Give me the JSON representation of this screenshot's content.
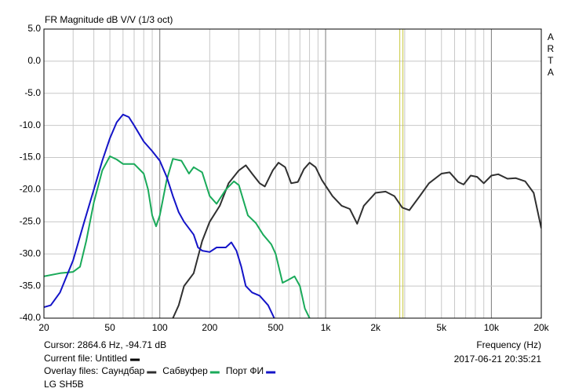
{
  "chart_data": {
    "type": "line",
    "title": "FR Magnitude dB V/V (1/3 oct)",
    "side_label": "ARTA",
    "x_label": "Frequency (Hz)",
    "x_scale": "log",
    "xlim": [
      20,
      20000
    ],
    "ylim": [
      -40,
      5
    ],
    "xticks": [
      20,
      50,
      100,
      200,
      500,
      {
        "value": 1000,
        "label": "1k"
      },
      {
        "value": 2000,
        "label": "2k"
      },
      {
        "value": 5000,
        "label": "5k"
      },
      {
        "value": 10000,
        "label": "10k"
      },
      {
        "value": 20000,
        "label": "20k"
      }
    ],
    "xgrid": [
      20,
      30,
      40,
      50,
      60,
      70,
      80,
      90,
      100,
      200,
      300,
      400,
      500,
      600,
      700,
      800,
      900,
      1000,
      2000,
      3000,
      4000,
      5000,
      6000,
      7000,
      8000,
      9000,
      10000,
      20000
    ],
    "xgrid_major": [
      100,
      1000,
      10000
    ],
    "yticks": [
      {
        "value": 5,
        "label": "5.0"
      },
      {
        "value": 0,
        "label": "0.0"
      },
      {
        "value": -5,
        "label": "-5.0"
      },
      {
        "value": -10,
        "label": "-10.0"
      },
      {
        "value": -15,
        "label": "-15.0"
      },
      {
        "value": -20,
        "label": "-20.0"
      },
      {
        "value": -25,
        "label": "-25.0"
      },
      {
        "value": -30,
        "label": "-30.0"
      },
      {
        "value": -35,
        "label": "-35.0"
      },
      {
        "value": -40,
        "label": "-40.0"
      }
    ],
    "grid": true,
    "cursor": {
      "label": "Cursor: 2864.6 Hz, -94.71 dB",
      "x": 2864.6,
      "color": "#c8c83c"
    },
    "current_file": "Current file: Untitled",
    "overlay_label": "Overlay files:",
    "timestamp": "2017-06-21  20:35:21",
    "device": "LG SH5B",
    "series": [
      {
        "name": "Саундбар",
        "color": "#303030",
        "x": [
          120,
          130,
          140,
          160,
          180,
          200,
          230,
          260,
          300,
          330,
          360,
          400,
          430,
          480,
          520,
          570,
          620,
          680,
          740,
          800,
          870,
          950,
          1100,
          1250,
          1400,
          1550,
          1700,
          2000,
          2300,
          2600,
          2900,
          3200,
          3700,
          4200,
          5000,
          5600,
          6300,
          6800,
          7500,
          8200,
          9000,
          10000,
          11000,
          12500,
          14000,
          16000,
          18000,
          20000
        ],
        "values": [
          -40,
          -38,
          -35,
          -33,
          -28,
          -25,
          -22.5,
          -19,
          -17,
          -16.2,
          -17.5,
          -19,
          -19.5,
          -17,
          -15.8,
          -16.5,
          -19,
          -18.8,
          -16.8,
          -15.8,
          -16.5,
          -18.5,
          -21,
          -22.5,
          -23,
          -25.3,
          -22.5,
          -20.5,
          -20.3,
          -21,
          -22.8,
          -23.2,
          -21,
          -19,
          -17.5,
          -17.3,
          -18.8,
          -19.2,
          -17.8,
          -18,
          -19,
          -17.8,
          -17.6,
          -18.3,
          -18.2,
          -18.7,
          -20.5,
          -26
        ]
      },
      {
        "name": "Сабвуфер",
        "color": "#1aaa5a",
        "x": [
          20,
          25,
          30,
          33,
          36,
          40,
          45,
          50,
          55,
          60,
          70,
          80,
          85,
          90,
          95,
          100,
          110,
          120,
          135,
          150,
          160,
          180,
          200,
          220,
          250,
          280,
          300,
          340,
          380,
          420,
          470,
          500,
          550,
          600,
          650,
          700,
          750,
          800
        ],
        "values": [
          -33.5,
          -33,
          -32.8,
          -32,
          -28,
          -22,
          -17,
          -14.8,
          -15.3,
          -16,
          -16,
          -17.5,
          -20,
          -24,
          -25.7,
          -24,
          -18.5,
          -15.2,
          -15.5,
          -17.5,
          -16.5,
          -17.3,
          -21,
          -22.2,
          -20,
          -18.7,
          -19.3,
          -24,
          -25.2,
          -27,
          -28.5,
          -30,
          -34.5,
          -34,
          -33.5,
          -35,
          -38.5,
          -40
        ]
      },
      {
        "name": "Порт ФИ",
        "color": "#1414c8",
        "x": [
          20,
          22,
          25,
          30,
          35,
          40,
          45,
          50,
          55,
          60,
          65,
          70,
          80,
          90,
          100,
          110,
          120,
          130,
          140,
          160,
          170,
          180,
          200,
          220,
          250,
          270,
          290,
          310,
          330,
          360,
          400,
          450,
          490
        ],
        "values": [
          -38.3,
          -38,
          -36,
          -31,
          -25,
          -20,
          -15.5,
          -12,
          -9.5,
          -8.3,
          -8.7,
          -10,
          -12.5,
          -14,
          -15.5,
          -18,
          -21,
          -23.5,
          -25,
          -27,
          -29,
          -29.5,
          -29.7,
          -29,
          -29,
          -28.2,
          -29.5,
          -32,
          -35,
          -36,
          -36.5,
          -38,
          -40
        ]
      }
    ]
  }
}
